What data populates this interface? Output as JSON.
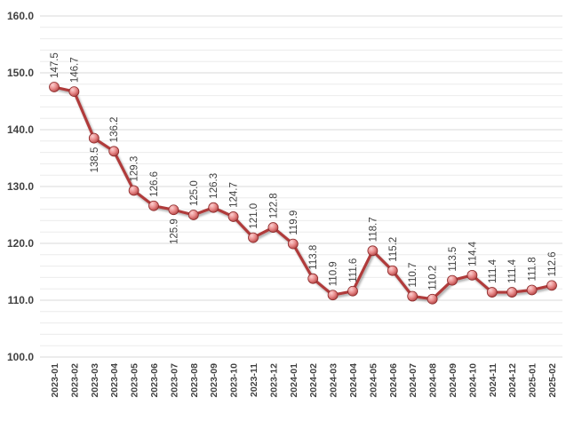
{
  "chart_data": {
    "type": "line",
    "title": "",
    "xlabel": "",
    "ylabel": "",
    "ylim": [
      100,
      160
    ],
    "y_ticks": [
      "100.0",
      "110.0",
      "120.0",
      "130.0",
      "140.0",
      "150.0",
      "160.0"
    ],
    "grid": true,
    "legend": "none",
    "line_color": "#b03a3a",
    "marker_color": "#e88a8a",
    "categories": [
      "2023-01",
      "2023-02",
      "2023-03",
      "2023-04",
      "2023-05",
      "2023-06",
      "2023-07",
      "2023-08",
      "2023-09",
      "2023-10",
      "2023-11",
      "2023-12",
      "2024-01",
      "2024-02",
      "2024-03",
      "2024-04",
      "2024-05",
      "2024-06",
      "2024-07",
      "2024-08",
      "2024-09",
      "2024-10",
      "2024-11",
      "2024-12",
      "2025-01",
      "2025-02"
    ],
    "series": [
      {
        "values": [
          147.5,
          146.7,
          138.5,
          136.2,
          129.3,
          126.6,
          125.9,
          125.0,
          126.3,
          124.7,
          121.0,
          122.8,
          119.9,
          113.8,
          110.9,
          111.6,
          118.7,
          115.2,
          110.7,
          110.2,
          113.5,
          114.4,
          111.4,
          111.4,
          111.8,
          112.6
        ],
        "labels": [
          "147.5",
          "146.7",
          "138.5",
          "136.2",
          "129.3",
          "126.6",
          "125.9",
          "125.0",
          "126.3",
          "124.7",
          "121.0",
          "122.8",
          "119.9",
          "113.8",
          "110.9",
          "111.6",
          "118.7",
          "115.2",
          "110.7",
          "110.2",
          "113.5",
          "114.4",
          "111.4",
          "111.4",
          "111.8",
          "112.6"
        ]
      }
    ]
  }
}
